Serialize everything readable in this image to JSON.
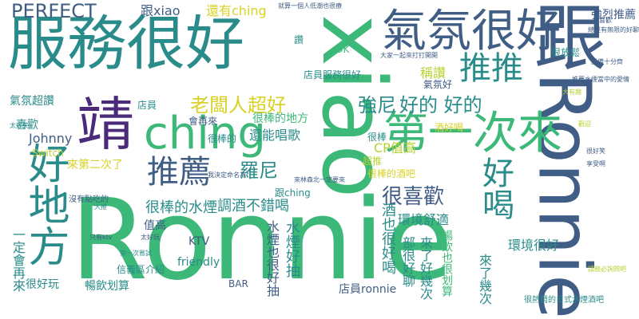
{
  "palette": {
    "green": "#3cb878",
    "teal": "#2a8c8a",
    "slate": "#3f5d85",
    "purple": "#4b2a7a",
    "lime": "#b7d230",
    "yellow": "#d9d224",
    "pale": "#8fd07a",
    "blue": "#3a6fa0"
  },
  "words": [
    {
      "text": "Ronnie"
    },
    {
      "text": "xiao"
    },
    {
      "text": "服務很好"
    },
    {
      "text": "跟Ronnie"
    },
    {
      "text": "好地方"
    },
    {
      "text": "氣氛很好"
    },
    {
      "text": "ching"
    },
    {
      "text": "第一次來"
    },
    {
      "text": "靖"
    },
    {
      "text": "推推"
    },
    {
      "text": "推薦"
    },
    {
      "text": "好喝"
    },
    {
      "text": "PERFECT"
    },
    {
      "text": "跟xiao"
    },
    {
      "text": "還有ching"
    },
    {
      "text": "老闆人超好"
    },
    {
      "text": "好的 好的"
    },
    {
      "text": "強尼"
    },
    {
      "text": "羅尼"
    },
    {
      "text": "很喜歡"
    },
    {
      "text": "很棒的地方"
    },
    {
      "text": "還能唱歌"
    },
    {
      "text": "很棒的水煙"
    },
    {
      "text": "調酒不錯喝"
    },
    {
      "text": "環境舒適"
    },
    {
      "text": "Johnny"
    },
    {
      "text": "Switch"
    },
    {
      "text": "喜歡"
    },
    {
      "text": "來第二次了"
    },
    {
      "text": "CP值高"
    },
    {
      "text": "氣氛超讚"
    },
    {
      "text": "店員"
    },
    {
      "text": "店員服務很好"
    },
    {
      "text": "會再來"
    },
    {
      "text": "很棒的"
    },
    {
      "text": "強烈推薦"
    },
    {
      "text": "OK"
    },
    {
      "text": "稱讚"
    },
    {
      "text": "很放鬆"
    },
    {
      "text": "酒也很好喝"
    },
    {
      "text": "水煙也很好抽"
    },
    {
      "text": "水煙好抽"
    },
    {
      "text": "部很好聊"
    },
    {
      "text": "來了好幾次"
    },
    {
      "text": "很棒的酒吧"
    },
    {
      "text": "暢飲也很划算"
    },
    {
      "text": "環境很好"
    },
    {
      "text": "來了幾次"
    },
    {
      "text": "KTV"
    },
    {
      "text": "friendly"
    },
    {
      "text": "值高"
    },
    {
      "text": "一定會再來"
    },
    {
      "text": "很好玩"
    },
    {
      "text": "暢飲划算"
    },
    {
      "text": "店員ronnie"
    },
    {
      "text": "BAR"
    },
    {
      "text": "超推"
    },
    {
      "text": "酒好喝"
    },
    {
      "text": "很棒"
    },
    {
      "text": "跟ching"
    },
    {
      "text": "信義區介紹"
    },
    {
      "text": "氣氛好"
    },
    {
      "text": "讚"
    },
    {
      "text": "就算一個人低潮也很療"
    },
    {
      "text": "最喜歡"
    },
    {
      "text": "沒有點吃的"
    },
    {
      "text": "太好笑"
    },
    {
      "text": "大推"
    },
    {
      "text": "只有ktv"
    },
    {
      "text": "太好玩"
    },
    {
      "text": "第一次嘗試"
    },
    {
      "text": "我決定命名為"
    },
    {
      "text": "來林森北一定要來"
    },
    {
      "text": "大家一起來打打開開"
    },
    {
      "text": "設備十分齊"
    },
    {
      "text": "推薦水煙當中的愛情"
    },
    {
      "text": "大有趣"
    },
    {
      "text": "總是有無限的好聊"
    },
    {
      "text": "很熱鬧的日式水煙酒吧"
    },
    {
      "text": "很好笑"
    },
    {
      "text": "享受啊"
    },
    {
      "text": "請務必詢問吧"
    },
    {
      "text": "觀迎"
    }
  ]
}
